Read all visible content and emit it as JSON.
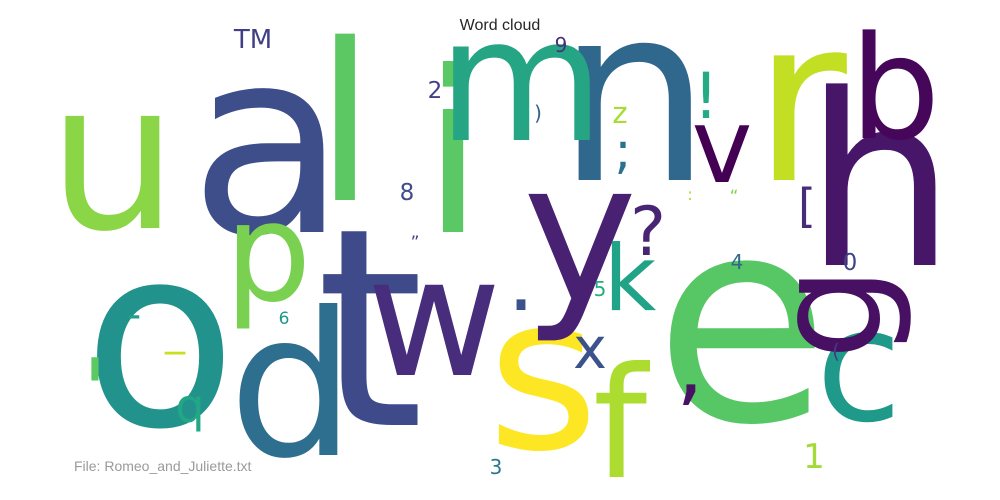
{
  "chart_data": {
    "type": "wordcloud",
    "title": "Word cloud",
    "footer": "File: Romeo_and_Juliette.txt",
    "colormap": "viridis",
    "words": [
      {
        "text": "e",
        "weight": 100,
        "color": "#57c766"
      },
      {
        "text": "t",
        "weight": 97,
        "color": "#3e4a89"
      },
      {
        "text": "a",
        "weight": 90,
        "color": "#3d4e8a"
      },
      {
        "text": "o",
        "weight": 88,
        "color": "#21928c"
      },
      {
        "text": "n",
        "weight": 86,
        "color": "#30678d"
      },
      {
        "text": "h",
        "weight": 84,
        "color": "#481668"
      },
      {
        "text": "r",
        "weight": 80,
        "color": "#c2df23"
      },
      {
        "text": "i",
        "weight": 79,
        "color": "#5ac864"
      },
      {
        "text": "l",
        "weight": 77,
        "color": "#5cc863"
      },
      {
        "text": "s",
        "weight": 75,
        "color": "#fde725"
      },
      {
        "text": "u",
        "weight": 72,
        "color": "#8bd646"
      },
      {
        "text": "d",
        "weight": 70,
        "color": "#2e6e8e"
      },
      {
        "text": "y",
        "weight": 68,
        "color": "#482173"
      },
      {
        "text": "m",
        "weight": 60,
        "color": "#25a584"
      },
      {
        "text": "w",
        "weight": 58,
        "color": "#472d7b"
      },
      {
        "text": "c",
        "weight": 55,
        "color": "#1f9a8a"
      },
      {
        "text": "f",
        "weight": 54,
        "color": "#addc30"
      },
      {
        "text": "g",
        "weight": 52,
        "color": "#471063"
      },
      {
        "text": "b",
        "weight": 50,
        "color": "#46075a"
      },
      {
        "text": "p",
        "weight": 48,
        "color": "#7ad151"
      },
      {
        "text": "v",
        "weight": 36,
        "color": "#440154"
      },
      {
        "text": "k",
        "weight": 32,
        "color": "#20a386"
      },
      {
        "text": ",",
        "weight": 30,
        "color": "#471164"
      },
      {
        "text": ".",
        "weight": 30,
        "color": "#3b518b"
      },
      {
        "text": "'",
        "weight": 30,
        "color": "#5dc963"
      },
      {
        "text": "?",
        "weight": 24,
        "color": "#482475"
      },
      {
        "text": "!",
        "weight": 22,
        "color": "#25ab82"
      },
      {
        "text": "x",
        "weight": 20,
        "color": "#3b528b"
      },
      {
        "text": "q",
        "weight": 16,
        "color": "#22a785"
      },
      {
        "text": ";",
        "weight": 18,
        "color": "#2c728e"
      },
      {
        "text": "[",
        "weight": 16,
        "color": "#472c7a"
      },
      {
        "text": "-",
        "weight": 14,
        "color": "#1fa088"
      },
      {
        "text": "_",
        "weight": 14,
        "color": "#c8e020"
      },
      {
        "text": "1",
        "weight": 12,
        "color": "#a2da37"
      },
      {
        "text": "z",
        "weight": 10,
        "color": "#a8db34"
      },
      {
        "text": "TM",
        "weight": 9,
        "color": "#423f85"
      },
      {
        "text": "2",
        "weight": 8,
        "color": "#433e85"
      },
      {
        "text": "9",
        "weight": 7,
        "color": "#46307e"
      },
      {
        "text": "8",
        "weight": 8,
        "color": "#3e4c8a"
      },
      {
        "text": "0",
        "weight": 8,
        "color": "#404387"
      },
      {
        "text": "4",
        "weight": 7,
        "color": "#31688e"
      },
      {
        "text": "5",
        "weight": 7,
        "color": "#26ad81"
      },
      {
        "text": "3",
        "weight": 7,
        "color": "#2b758e"
      },
      {
        "text": "6",
        "weight": 6,
        "color": "#1f978b"
      },
      {
        "text": ")",
        "weight": 7,
        "color": "#34618d"
      },
      {
        "text": "(",
        "weight": 7,
        "color": "#443a83"
      },
      {
        "text": "”",
        "weight": 6,
        "color": "#3f4788"
      },
      {
        "text": "“",
        "weight": 6,
        "color": "#81d34d"
      },
      {
        "text": ":",
        "weight": 6,
        "color": "#b0dd2f"
      }
    ]
  }
}
